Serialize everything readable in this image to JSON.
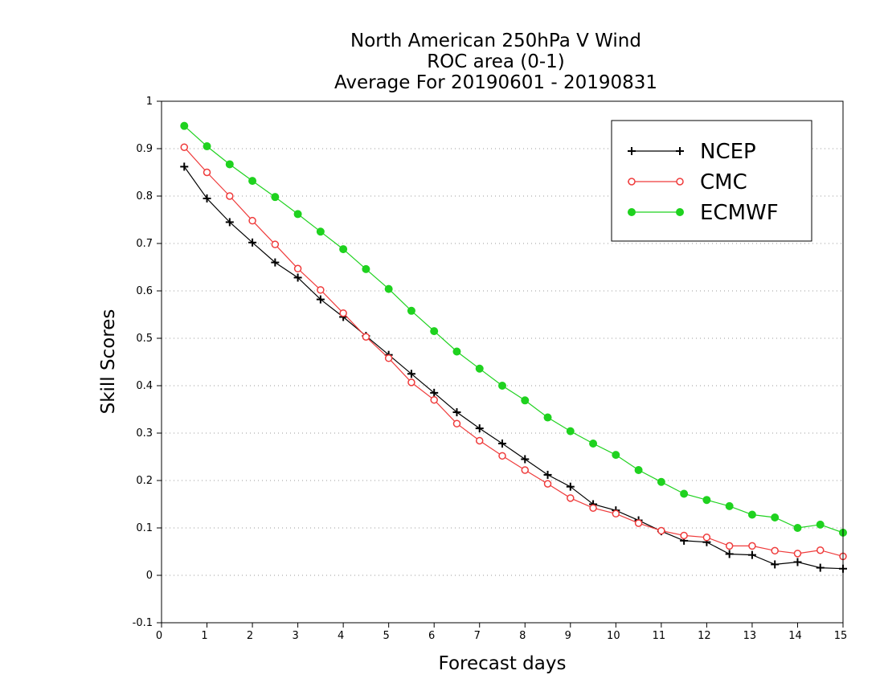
{
  "chart_data": {
    "type": "line",
    "title_lines": [
      "North American 250hPa V Wind",
      "ROC area (0-1)",
      "Average For 20190601 - 20190831"
    ],
    "xlabel": "Forecast days",
    "ylabel": "Skill Scores",
    "xlim": [
      0,
      15
    ],
    "ylim": [
      -0.1,
      1
    ],
    "x_ticks": [
      0,
      1,
      2,
      3,
      4,
      5,
      6,
      7,
      8,
      9,
      10,
      11,
      12,
      13,
      14,
      15
    ],
    "y_ticks": [
      -0.1,
      0,
      0.1,
      0.2,
      0.3,
      0.4,
      0.5,
      0.6,
      0.7,
      0.8,
      0.9,
      1
    ],
    "x_tick_labels": [
      "0",
      "1",
      "2",
      "3",
      "4",
      "5",
      "6",
      "7",
      "8",
      "9",
      "10",
      "11",
      "12",
      "13",
      "14",
      "15"
    ],
    "y_tick_labels": [
      "-0.1",
      "0",
      "0.1",
      "0.2",
      "0.3",
      "0.4",
      "0.5",
      "0.6",
      "0.7",
      "0.8",
      "0.9",
      "1"
    ],
    "grid": "horizontal dotted",
    "legend_position": "top-right",
    "x": [
      0.5,
      1,
      1.5,
      2,
      2.5,
      3,
      3.5,
      4,
      4.5,
      5,
      5.5,
      6,
      6.5,
      7,
      7.5,
      8,
      8.5,
      9,
      9.5,
      10,
      10.5,
      11,
      11.5,
      12,
      12.5,
      13,
      13.5,
      14,
      14.5,
      15
    ],
    "series": [
      {
        "name": "NCEP",
        "color": "#000000",
        "marker": "plus",
        "values": [
          0.862,
          0.795,
          0.745,
          0.702,
          0.66,
          0.628,
          0.582,
          0.545,
          0.505,
          0.465,
          0.425,
          0.385,
          0.344,
          0.31,
          0.278,
          0.245,
          0.212,
          0.187,
          0.15,
          0.137,
          0.116,
          0.093,
          0.073,
          0.07,
          0.045,
          0.043,
          0.023,
          0.028,
          0.016,
          0.014
        ]
      },
      {
        "name": "CMC",
        "color": "#ef3b3b",
        "marker": "open-circle",
        "values": [
          0.903,
          0.85,
          0.8,
          0.748,
          0.698,
          0.647,
          0.602,
          0.553,
          0.503,
          0.458,
          0.407,
          0.37,
          0.32,
          0.284,
          0.252,
          0.222,
          0.193,
          0.163,
          0.142,
          0.13,
          0.11,
          0.094,
          0.084,
          0.08,
          0.062,
          0.062,
          0.052,
          0.046,
          0.053,
          0.04
        ]
      },
      {
        "name": "ECMWF",
        "color": "#1fd21f",
        "marker": "filled-circle",
        "values": [
          0.948,
          0.905,
          0.867,
          0.832,
          0.798,
          0.762,
          0.725,
          0.688,
          0.646,
          0.604,
          0.558,
          0.515,
          0.472,
          0.436,
          0.4,
          0.369,
          0.333,
          0.304,
          0.278,
          0.254,
          0.222,
          0.197,
          0.172,
          0.159,
          0.146,
          0.128,
          0.122,
          0.1,
          0.107,
          0.09
        ]
      }
    ]
  }
}
